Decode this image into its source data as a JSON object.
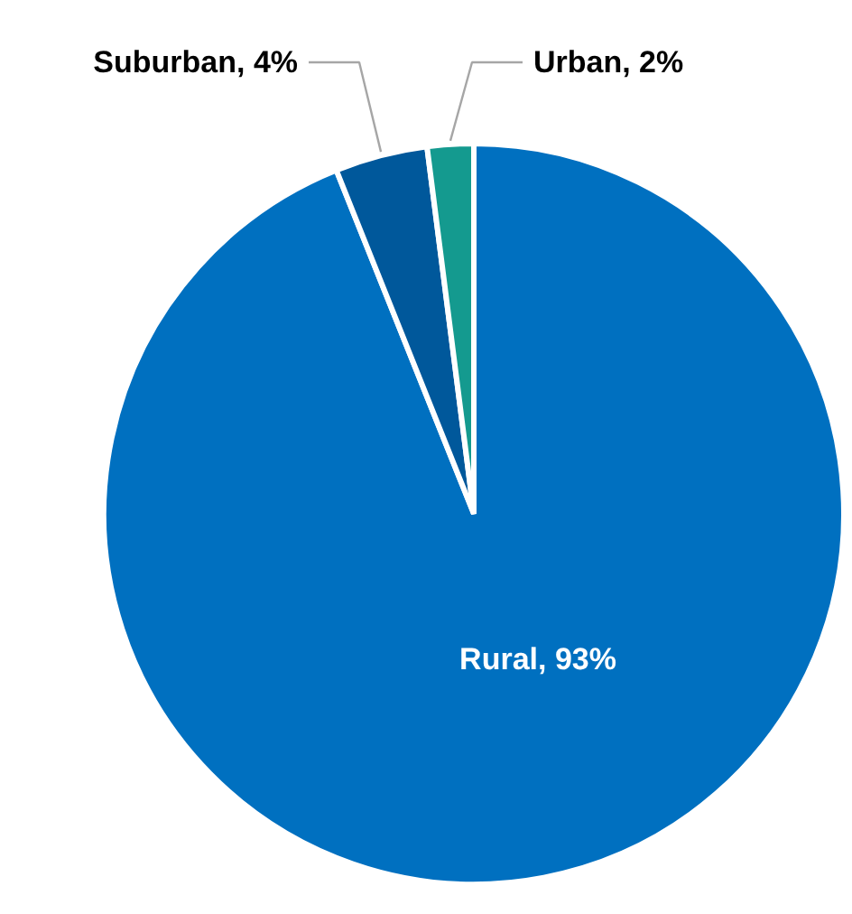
{
  "chart_data": {
    "type": "pie",
    "categories": [
      "Rural",
      "Suburban",
      "Urban"
    ],
    "values": [
      93,
      4,
      2
    ],
    "value_labels": [
      "93%",
      "4%",
      "2%"
    ],
    "colors": [
      "#0070c0",
      "#00589b",
      "#149a8f"
    ]
  }
}
